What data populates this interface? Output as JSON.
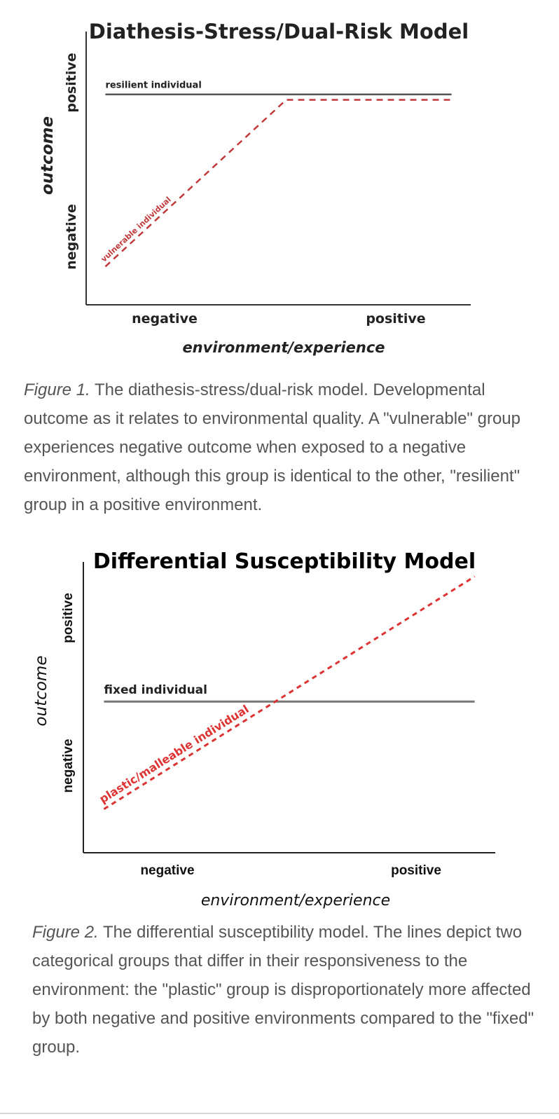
{
  "chart_data": [
    {
      "type": "line",
      "title": "Diathesis-Stress/Dual-Risk Model",
      "xlabel": "environment/experience",
      "ylabel": "outcome",
      "x_ticks": [
        "negative",
        "positive"
      ],
      "y_ticks": [
        "negative",
        "positive"
      ],
      "xlim": [
        0,
        1
      ],
      "ylim": [
        0,
        1
      ],
      "series": [
        {
          "name": "resilient individual",
          "style": "solid",
          "color": "#555555",
          "x": [
            0.05,
            0.95
          ],
          "y": [
            0.77,
            0.77
          ]
        },
        {
          "name": "vulnerable individual",
          "style": "dashed",
          "color": "#c0393b",
          "x": [
            0.05,
            0.52,
            0.95
          ],
          "y": [
            0.14,
            0.75,
            0.75
          ]
        }
      ]
    },
    {
      "type": "line",
      "title": "Differential Susceptibility Model",
      "xlabel": "environment/experience",
      "ylabel": "outcome",
      "x_ticks": [
        "negative",
        "positive"
      ],
      "y_ticks": [
        "negative",
        "positive"
      ],
      "xlim": [
        0,
        1
      ],
      "ylim": [
        0,
        1
      ],
      "series": [
        {
          "name": "fixed individual",
          "style": "solid",
          "color": "#777777",
          "x": [
            0.05,
            0.95
          ],
          "y": [
            0.52,
            0.52
          ]
        },
        {
          "name": "plastic/malleable individual",
          "style": "dashed",
          "color": "#dd3333",
          "x": [
            0.05,
            0.95
          ],
          "y": [
            0.15,
            0.95
          ]
        }
      ]
    }
  ],
  "captions": [
    {
      "label": "Figure 1.",
      "text": " The diathesis-stress/dual-risk model. Developmental outcome as it relates to environmental quality. A \"vulnerable\" group experiences negative outcome when exposed to a negative environment, although this group is identical to the other, \"resilient\" group in a positive environment."
    },
    {
      "label": "Figure 2.",
      "text": " The differential susceptibility model. The lines depict two categorical groups that differ in their responsiveness to the environment: the \"plastic\" group is disproportionately more affected by both negative and positive environments compared to the \"fixed\" group."
    }
  ]
}
